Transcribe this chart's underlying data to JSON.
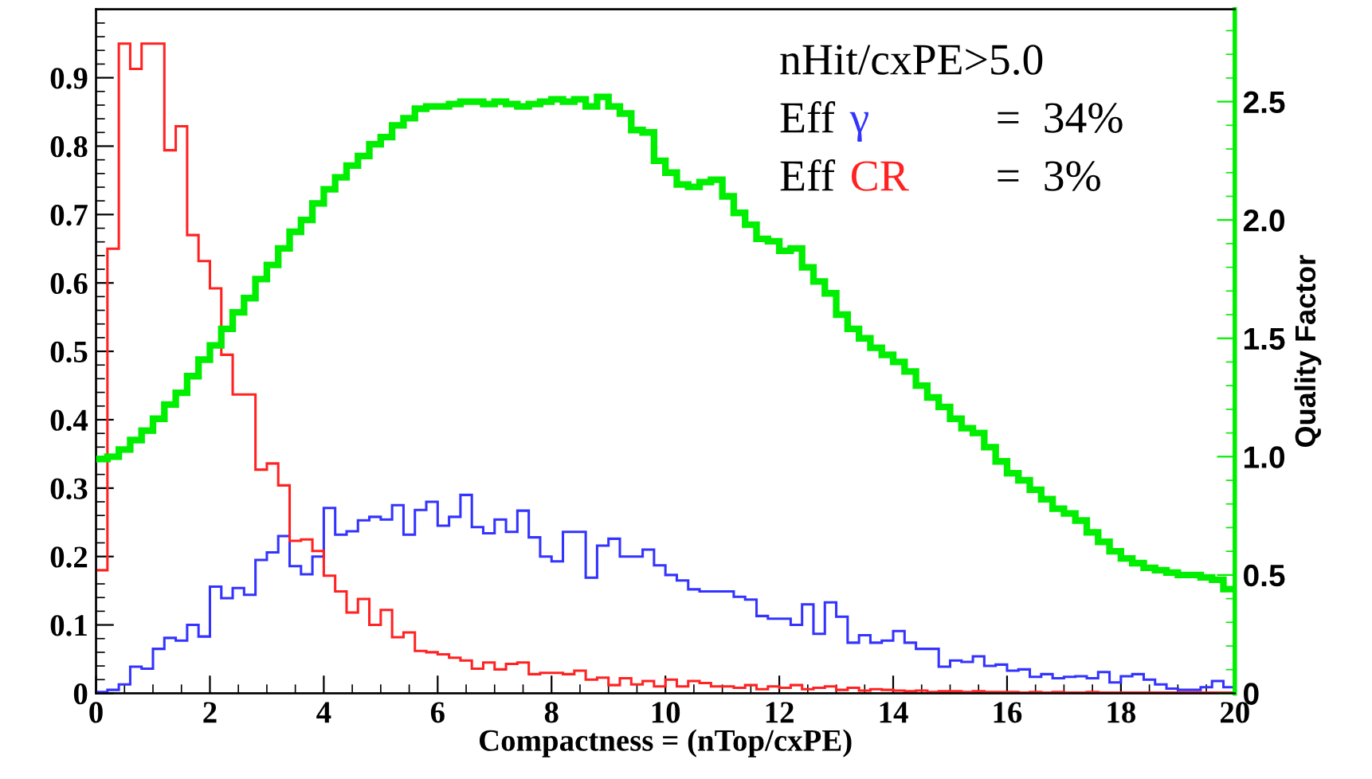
{
  "chart_data": {
    "type": "histogram",
    "xlabel": "Compactness = (nTop/cxPE)",
    "y2label": "Quality Factor",
    "annotations": [
      "nHit/cxPE>5.0",
      "Eff",
      "=  34%",
      "Eff",
      "=  3%"
    ],
    "bins": [
      0,
      0.2,
      0.4,
      0.6,
      0.8,
      1,
      1.2,
      1.4,
      1.6,
      1.8,
      2,
      2.2,
      2.4,
      2.6,
      2.8,
      3,
      3.2,
      3.4,
      3.6,
      3.8,
      4,
      4.2,
      4.4,
      4.6,
      4.8,
      5,
      5.2,
      5.4,
      5.6,
      5.8,
      6,
      6.2,
      6.4,
      6.6,
      6.8,
      7,
      7.2,
      7.4,
      7.6,
      7.8,
      8,
      8.2,
      8.4,
      8.6,
      8.8,
      9,
      9.2,
      9.4,
      9.6,
      9.8,
      10,
      10.2,
      10.4,
      10.6,
      10.8,
      11,
      11.2,
      11.4,
      11.6,
      11.8,
      12,
      12.2,
      12.4,
      12.6,
      12.8,
      13,
      13.2,
      13.4,
      13.6,
      13.8,
      14,
      14.2,
      14.4,
      14.6,
      14.8,
      15,
      15.2,
      15.4,
      15.6,
      15.8,
      16,
      16.2,
      16.4,
      16.6,
      16.8,
      17,
      17.2,
      17.4,
      17.6,
      17.8,
      18,
      18.2,
      18.4,
      18.6,
      18.8,
      19,
      19.2,
      19.4,
      19.6,
      19.8,
      20
    ],
    "series": [
      {
        "name": "γ",
        "color": "#3333ff",
        "values": [
          0.002,
          0.005,
          0.013,
          0.039,
          0.036,
          0.065,
          0.081,
          0.077,
          0.1,
          0.083,
          0.156,
          0.139,
          0.154,
          0.144,
          0.195,
          0.206,
          0.23,
          0.186,
          0.174,
          0.2,
          0.271,
          0.232,
          0.237,
          0.253,
          0.258,
          0.254,
          0.275,
          0.232,
          0.268,
          0.28,
          0.245,
          0.258,
          0.29,
          0.243,
          0.234,
          0.254,
          0.236,
          0.267,
          0.228,
          0.2,
          0.193,
          0.236,
          0.236,
          0.169,
          0.216,
          0.226,
          0.2,
          0.2,
          0.21,
          0.187,
          0.173,
          0.165,
          0.152,
          0.149,
          0.149,
          0.149,
          0.141,
          0.137,
          0.113,
          0.109,
          0.109,
          0.1,
          0.13,
          0.087,
          0.133,
          0.112,
          0.074,
          0.085,
          0.074,
          0.077,
          0.091,
          0.074,
          0.065,
          0.065,
          0.039,
          0.048,
          0.046,
          0.054,
          0.04,
          0.042,
          0.033,
          0.035,
          0.024,
          0.028,
          0.022,
          0.024,
          0.025,
          0.022,
          0.031,
          0.016,
          0.025,
          0.028,
          0.02,
          0.013,
          0.007,
          0.005,
          0.005,
          0.009,
          0.018,
          0.009
        ]
      },
      {
        "name": "CR",
        "color": "#ff2222",
        "values": [
          0.18,
          0.65,
          0.95,
          0.913,
          0.95,
          0.95,
          0.794,
          0.829,
          0.67,
          0.632,
          0.592,
          0.495,
          0.437,
          0.437,
          0.327,
          0.336,
          0.304,
          0.223,
          0.225,
          0.208,
          0.172,
          0.149,
          0.118,
          0.138,
          0.1,
          0.122,
          0.082,
          0.089,
          0.062,
          0.06,
          0.057,
          0.052,
          0.048,
          0.036,
          0.045,
          0.035,
          0.043,
          0.045,
          0.028,
          0.03,
          0.03,
          0.028,
          0.033,
          0.02,
          0.023,
          0.012,
          0.022,
          0.013,
          0.018,
          0.01,
          0.02,
          0.01,
          0.018,
          0.015,
          0.01,
          0.01,
          0.008,
          0.012,
          0.006,
          0.01,
          0.008,
          0.012,
          0.006,
          0.008,
          0.01,
          0.005,
          0.008,
          0.004,
          0.006,
          0.005,
          0.004,
          0.003,
          0.004,
          0.002,
          0.003,
          0.003,
          0.002,
          0.003,
          0.002,
          0.002,
          0.002,
          0.001,
          0.002,
          0.001,
          0.002,
          0.001,
          0.001,
          0.002,
          0.001,
          0.001,
          0.001,
          0.001,
          0.001,
          0.001,
          0.001,
          0.001,
          0.001,
          0.001,
          0.001,
          0.001
        ]
      },
      {
        "color": "#00ee00",
        "axis": "y2",
        "values": [
          0.99,
          1.0,
          1.03,
          1.07,
          1.11,
          1.16,
          1.22,
          1.27,
          1.34,
          1.41,
          1.47,
          1.54,
          1.61,
          1.67,
          1.75,
          1.81,
          1.88,
          1.95,
          2.0,
          2.07,
          2.13,
          2.18,
          2.23,
          2.27,
          2.32,
          2.35,
          2.4,
          2.43,
          2.47,
          2.48,
          2.48,
          2.49,
          2.5,
          2.5,
          2.49,
          2.5,
          2.49,
          2.48,
          2.49,
          2.5,
          2.51,
          2.5,
          2.51,
          2.48,
          2.52,
          2.48,
          2.45,
          2.38,
          2.37,
          2.25,
          2.2,
          2.15,
          2.14,
          2.16,
          2.17,
          2.1,
          2.03,
          1.98,
          1.92,
          1.91,
          1.87,
          1.88,
          1.8,
          1.74,
          1.69,
          1.6,
          1.54,
          1.5,
          1.46,
          1.43,
          1.4,
          1.36,
          1.3,
          1.25,
          1.21,
          1.16,
          1.12,
          1.1,
          1.04,
          0.98,
          0.93,
          0.9,
          0.86,
          0.82,
          0.78,
          0.76,
          0.73,
          0.68,
          0.64,
          0.6,
          0.57,
          0.55,
          0.53,
          0.52,
          0.51,
          0.5,
          0.5,
          0.49,
          0.48,
          0.44
        ]
      }
    ],
    "xlim": [
      0,
      20
    ],
    "xticks": [
      0,
      2,
      4,
      6,
      8,
      10,
      12,
      14,
      16,
      18,
      20
    ],
    "ylim": [
      0,
      1.0
    ],
    "yticks": [
      0,
      0.1,
      0.2,
      0.3,
      0.4,
      0.5,
      0.6,
      0.7,
      0.8,
      0.9
    ],
    "y2lim": [
      0,
      2.89
    ],
    "y2ticks": [
      0,
      {
        "value": 0.5,
        "label": "0.5"
      },
      {
        "value": 1,
        "label": "1.0"
      },
      {
        "value": 1.5,
        "label": "1.5"
      },
      {
        "value": 2,
        "label": "2.0"
      },
      {
        "value": 2.5,
        "label": "2.5"
      }
    ],
    "grid": false,
    "legend": "top right"
  }
}
